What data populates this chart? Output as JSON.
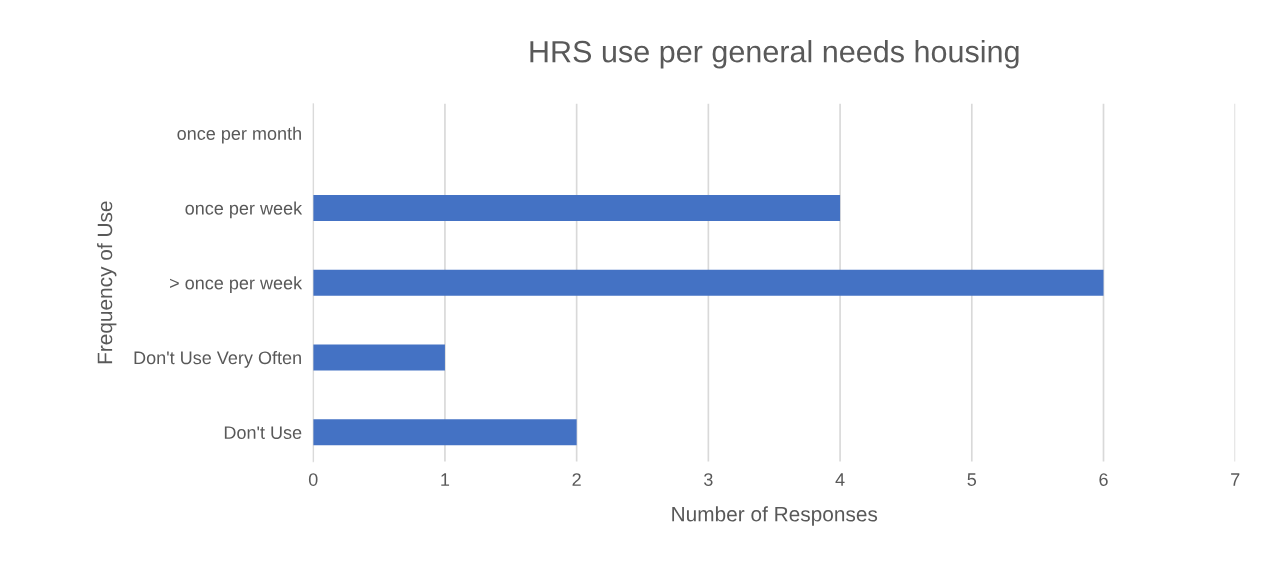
{
  "chart_data": {
    "type": "bar",
    "orientation": "horizontal",
    "title": "HRS use per general needs housing",
    "xlabel": "Number of Responses",
    "ylabel": "Frequency of Use",
    "categories": [
      "once per month",
      "once per week",
      "> once per week",
      "Don't Use Very Often",
      "Don't Use"
    ],
    "values": [
      0,
      4,
      6,
      1,
      2
    ],
    "color": "#4472c4",
    "xlim": [
      0,
      7
    ],
    "xticks": [
      0,
      1,
      2,
      3,
      4,
      5,
      6,
      7
    ],
    "grid": "x",
    "legend": false
  }
}
